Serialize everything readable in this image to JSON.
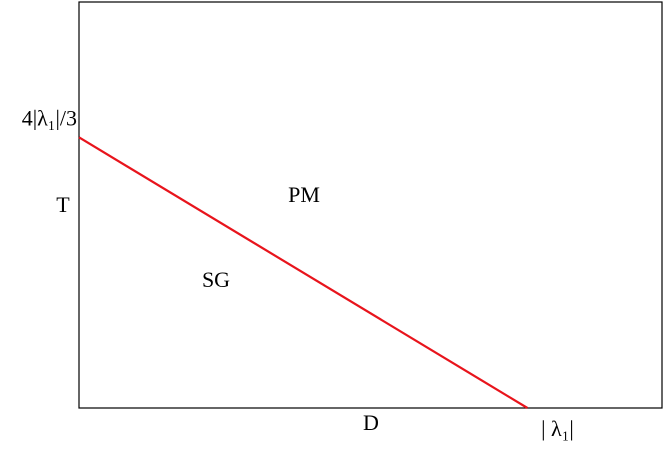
{
  "chart_data": {
    "type": "line",
    "x_label": "D",
    "y_label": "T",
    "annotations": [
      "PM",
      "SG"
    ],
    "x": [
      0,
      1
    ],
    "series": [
      {
        "color": "#e8141c",
        "values": [
          1.3333,
          0
        ]
      }
    ],
    "xlim": [
      0,
      1.3
    ],
    "ylim": [
      0,
      2.0
    ],
    "xticks": [
      {
        "value": 1,
        "label": "| λ₁|"
      }
    ],
    "yticks": [
      {
        "value": 1.3333,
        "label": "4|λ₁|/3"
      }
    ],
    "grid": false
  }
}
